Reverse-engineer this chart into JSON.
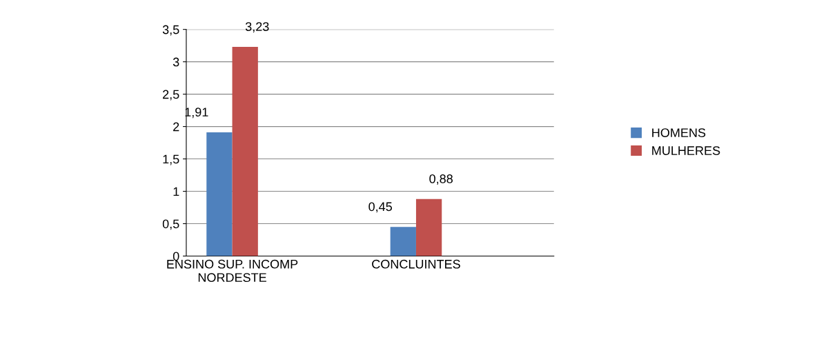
{
  "chart_data": {
    "type": "bar",
    "categories": [
      "ENSINO SUP. INCOMP\nNORDESTE",
      null,
      "CONCLUINTES",
      null
    ],
    "series": [
      {
        "name": "HOMENS",
        "color": "#4f81bd",
        "values": [
          1.91,
          null,
          0.45,
          null
        ],
        "value_labels": [
          "1,91",
          null,
          "0,45",
          null
        ]
      },
      {
        "name": "MULHERES",
        "color": "#c0504d",
        "values": [
          3.23,
          null,
          0.88,
          null
        ],
        "value_labels": [
          "3,23",
          null,
          "0,88",
          null
        ]
      }
    ],
    "ylim": [
      0,
      3.5
    ],
    "yticks": [
      0,
      {
        "value": 0.5,
        "label": "0,5"
      },
      1,
      {
        "value": 1.5,
        "label": "1,5"
      },
      2,
      {
        "value": 2.5,
        "label": "2,5"
      },
      3,
      {
        "value": 3.5,
        "label": "3,5"
      }
    ],
    "grid": "y",
    "legend": "right"
  }
}
